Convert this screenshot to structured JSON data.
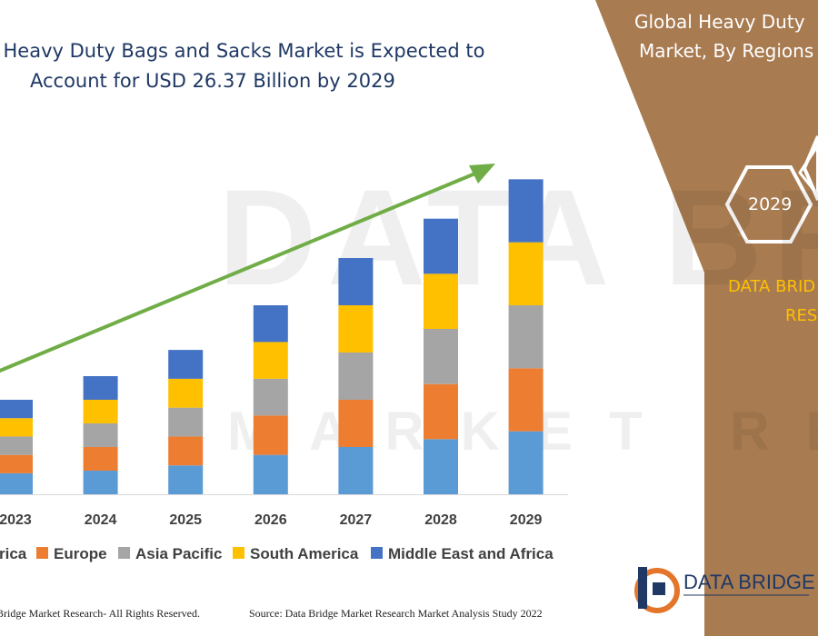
{
  "page": {
    "title_line_1": "l Heavy Duty Bags and Sacks Market is Expected to",
    "title_line_2": "Account for USD 26.37 Billion by 2029",
    "watermark_line_1": "DATA BRIDGE",
    "watermark_line_2": "MARKET RESEARCH",
    "footer_left": "Bridge Market Research- All Rights Reserved.",
    "footer_right": "Source: Data Bridge Market Research Market Analysis Study 2022"
  },
  "side_panel": {
    "title_line_1": "Global Heavy Duty",
    "title_line_2": "Market, By Regions",
    "hexagon_year": "2029",
    "brand_line_1": "DATA BRID",
    "brand_line_2": "RES",
    "logo_text": "DATA BRIDGE",
    "colors": {
      "panel": "#a87b51",
      "text": "#ffffff",
      "brand": "#ffc000"
    }
  },
  "chart_data": {
    "type": "bar",
    "stacked": true,
    "categories": [
      "2023",
      "2024",
      "2025",
      "2026",
      "2027",
      "2028",
      "2029"
    ],
    "series": [
      {
        "name": "North America",
        "legend_label": "rica",
        "color": "#5b9bd5",
        "values": [
          4.0,
          4.5,
          5.5,
          7.5,
          9.0,
          10.5,
          12.0
        ]
      },
      {
        "name": "Europe",
        "legend_label": "Europe",
        "color": "#ed7d31",
        "values": [
          3.5,
          4.5,
          5.5,
          7.5,
          9.0,
          10.5,
          12.0
        ]
      },
      {
        "name": "Asia Pacific",
        "legend_label": "Asia Pacific",
        "color": "#a5a5a5",
        "values": [
          3.5,
          4.5,
          5.5,
          7.0,
          9.0,
          10.5,
          12.0
        ]
      },
      {
        "name": "South America",
        "legend_label": "South America",
        "color": "#ffc000",
        "values": [
          3.5,
          4.5,
          5.5,
          7.0,
          9.0,
          10.5,
          12.0
        ]
      },
      {
        "name": "Middle East and Africa",
        "legend_label": "Middle East and Africa",
        "color": "#4472c4",
        "values": [
          3.5,
          4.5,
          5.5,
          7.0,
          9.0,
          10.5,
          12.0
        ]
      }
    ],
    "ylim": [
      0,
      63
    ],
    "grid": false,
    "trend_arrow": {
      "color": "#70ad47",
      "direction": "up"
    },
    "legend_position": "bottom"
  }
}
